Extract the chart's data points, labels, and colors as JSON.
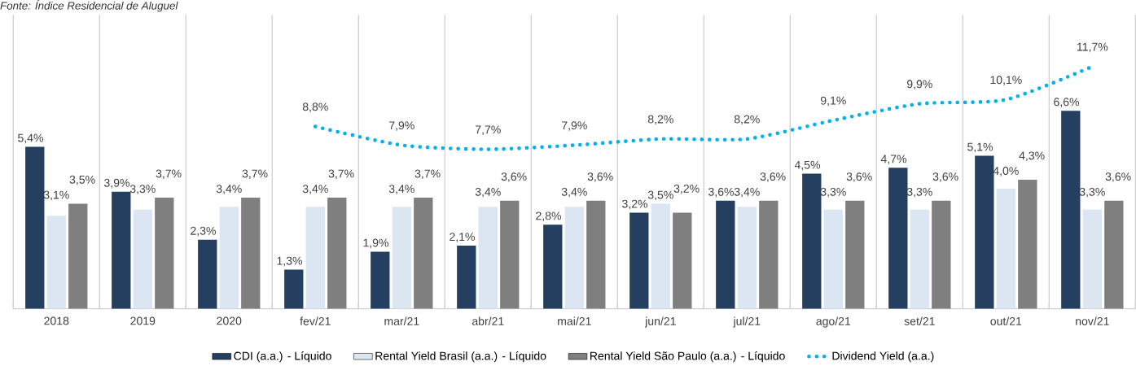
{
  "chart_data": {
    "type": "bar",
    "annotations": [
      "Fonte: Índice Residencial de Aluguel"
    ],
    "categories": [
      "2018",
      "2019",
      "2020",
      "fev/21",
      "mar/21",
      "abr/21",
      "mai/21",
      "jun/21",
      "jul/21",
      "ago/21",
      "set/21",
      "out/21",
      "nov/21"
    ],
    "ylim": [
      0,
      9.8
    ],
    "y2lim": [
      0,
      14.2
    ],
    "grid": "x",
    "legend": "bottom",
    "tick_labels": "x",
    "series": [
      {
        "name": "CDI (a.a.) - Líquido",
        "color": "#243f60",
        "values": [
          5.4,
          3.9,
          2.3,
          1.3,
          1.9,
          2.1,
          2.8,
          3.2,
          3.6,
          4.5,
          4.7,
          5.1,
          6.6
        ],
        "value_labels": [
          "5,4%",
          "3,9%",
          "2,3%",
          "1,3%",
          "1,9%",
          "2,1%",
          "2,8%",
          "3,2%",
          "3,6%",
          "4,5%",
          "4,7%",
          "5,1%",
          "6,6%"
        ]
      },
      {
        "name": "Rental Yield Brasil (a.a.) - Líquido",
        "color": "#dce6f2",
        "values": [
          3.1,
          3.3,
          3.4,
          3.4,
          3.4,
          3.4,
          3.4,
          3.5,
          3.4,
          3.3,
          3.3,
          4.0,
          3.3
        ],
        "value_labels": [
          "3,1%",
          "3,3%",
          "3,4%",
          "3,4%",
          "3,4%",
          "3,4%",
          "3,4%",
          "3,5%",
          "3,4%",
          "3,3%",
          "3,3%",
          "4,0%",
          "3,3%"
        ]
      },
      {
        "name": "Rental Yield São Paulo (a.a.) - Líquido",
        "color": "#7f7f7f",
        "values": [
          3.5,
          3.7,
          3.7,
          3.7,
          3.7,
          3.6,
          3.6,
          3.2,
          3.6,
          3.6,
          3.6,
          4.3,
          3.6
        ],
        "value_labels": [
          "3,5%",
          "3,7%",
          "3,7%",
          "3,7%",
          "3,7%",
          "3,6%",
          "3,6%",
          "3,2%",
          "3,6%",
          "3,6%",
          "3,6%",
          "4,3%",
          "3,6%"
        ]
      },
      {
        "name": "Dividend Yield (a.a.)",
        "type": "line",
        "axis": "y2",
        "line_style": "dotted",
        "marker": "none",
        "color": "#00b0f0",
        "values": [
          null,
          null,
          null,
          8.8,
          7.9,
          7.7,
          7.9,
          8.2,
          8.2,
          9.1,
          9.9,
          10.1,
          11.7
        ],
        "value_labels": [
          null,
          null,
          null,
          "8,8%",
          "7,9%",
          "7,7%",
          "7,9%",
          "8,2%",
          "8,2%",
          "9,1%",
          "9,9%",
          "10,1%",
          "11,7%"
        ]
      }
    ]
  }
}
